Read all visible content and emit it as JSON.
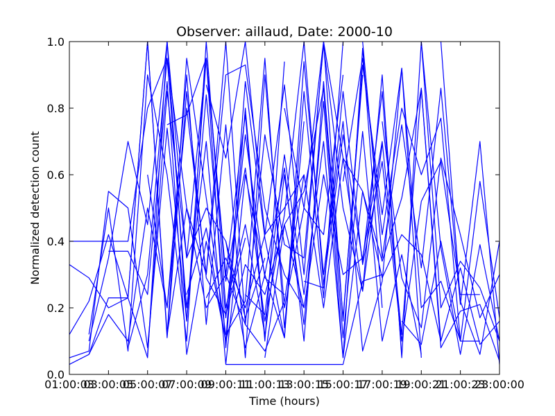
{
  "chart_data": {
    "type": "line",
    "title": "Observer: aillaud, Date: 2000-10",
    "xlabel": "Time (hours)",
    "ylabel": "Normalized detection count",
    "xlim": [
      1,
      23
    ],
    "ylim": [
      0,
      1
    ],
    "x_ticks": [
      1,
      3,
      5,
      7,
      9,
      11,
      13,
      15,
      17,
      19,
      21,
      23
    ],
    "x_tick_labels": [
      "01:00:03",
      "03:00:05",
      "05:00:07",
      "07:00:09",
      "09:00:11",
      "11:00:13",
      "13:00:15",
      "15:00:17",
      "17:00:19",
      "19:00:21",
      "21:00:23",
      "23:00:00"
    ],
    "y_ticks": [
      0,
      0.2,
      0.4,
      0.6,
      0.8,
      1.0
    ],
    "y_tick_labels": [
      "0.0",
      "0.2",
      "0.4",
      "0.6",
      "0.8",
      "1.0"
    ],
    "grid": false,
    "line_color": "#0000ff",
    "series": [
      {
        "x": [
          1,
          3,
          4,
          5,
          6,
          7,
          8,
          9,
          10,
          11,
          12,
          13
        ],
        "y": [
          0.4,
          0.4,
          0.4,
          0.8,
          0.95,
          0.5,
          0.3,
          0.9,
          0.93,
          0.5,
          0.3,
          0.2
        ]
      },
      {
        "x": [
          1,
          2,
          3,
          4,
          5,
          6,
          7,
          8,
          9,
          10,
          11
        ],
        "y": [
          0.33,
          0.29,
          0.2,
          0.23,
          0.05,
          1.0,
          0.35,
          0.5,
          0.4,
          0.17,
          0.35
        ]
      },
      {
        "x": [
          1,
          2,
          3,
          4,
          5,
          6,
          7,
          8,
          9,
          10
        ],
        "y": [
          0.12,
          0.22,
          0.42,
          0.23,
          1.0,
          0.11,
          0.85,
          0.29,
          0.18,
          0.41
        ]
      },
      {
        "x": [
          1,
          2,
          3,
          4,
          5,
          6,
          7,
          8,
          9,
          10,
          11,
          12
        ],
        "y": [
          0.05,
          0.07,
          0.55,
          0.5,
          0.08,
          0.74,
          0.16,
          0.95,
          0.3,
          0.78,
          0.1,
          0.94
        ]
      },
      {
        "x": [
          2,
          3,
          4,
          5,
          6,
          7,
          8,
          9,
          10,
          11
        ],
        "y": [
          0.12,
          0.5,
          0.07,
          0.9,
          0.6,
          0.1,
          1.0,
          0.2,
          0.45,
          0.12
        ]
      },
      {
        "x": [
          2,
          3,
          4,
          5,
          6,
          7,
          8,
          9,
          10,
          11,
          12,
          13
        ],
        "y": [
          0.06,
          0.23,
          0.23,
          1.0,
          0.12,
          0.95,
          0.53,
          0.12,
          0.22,
          0.95,
          0.14,
          0.76
        ]
      },
      {
        "x": [
          1,
          2,
          3,
          4,
          5,
          6,
          7,
          8,
          9,
          10,
          11,
          12,
          13
        ],
        "y": [
          0.03,
          0.06,
          0.18,
          0.1,
          0.5,
          0.2,
          0.8,
          0.3,
          1.0,
          0.15,
          0.07,
          0.22,
          0.6
        ]
      },
      {
        "x": [
          2,
          3,
          4,
          5,
          6,
          7,
          8,
          9,
          10,
          11,
          12
        ],
        "y": [
          0.1,
          0.35,
          0.7,
          0.45,
          1.0,
          0.16,
          0.84,
          0.17,
          0.72,
          0.29,
          0.24
        ]
      },
      {
        "x": [
          3,
          4,
          5,
          6,
          7,
          8,
          9,
          10,
          11,
          12,
          13,
          14,
          15
        ],
        "y": [
          0.37,
          0.37,
          0.24,
          0.88,
          0.06,
          0.4,
          0.1,
          0.88,
          0.41,
          0.11,
          0.85,
          0.23,
          1.0
        ]
      },
      {
        "x": [
          4,
          5,
          6,
          7,
          8,
          9,
          10,
          11,
          12,
          13,
          14,
          15,
          16
        ],
        "y": [
          0.08,
          0.3,
          0.95,
          0.2,
          0.7,
          0.03,
          0.6,
          0.3,
          0.62,
          0.1,
          0.88,
          0.17,
          0.9
        ]
      },
      {
        "x": [
          5,
          6,
          7,
          8,
          9,
          10,
          11,
          12,
          13,
          14,
          15,
          16,
          17
        ],
        "y": [
          0.06,
          0.85,
          0.35,
          0.95,
          0.08,
          0.8,
          0.11,
          0.6,
          0.15,
          0.82,
          0.05,
          0.98,
          0.2
        ]
      },
      {
        "x": [
          5,
          6,
          7,
          8,
          9,
          10,
          11,
          12,
          13,
          14,
          15
        ],
        "y": [
          0.6,
          0.2,
          0.9,
          0.15,
          0.75,
          0.05,
          0.9,
          0.2,
          0.5,
          0.42,
          0.9
        ]
      },
      {
        "x": [
          6,
          7,
          8,
          9,
          10,
          11,
          12,
          13,
          14,
          15,
          16,
          17,
          18
        ],
        "y": [
          0.75,
          0.78,
          0.95,
          0.28,
          0.62,
          0.16,
          0.48,
          1.0,
          0.27,
          0.72,
          0.34,
          0.85,
          0.06
        ]
      },
      {
        "x": [
          6,
          7,
          8,
          9,
          10,
          11,
          12,
          13,
          14,
          15,
          16,
          17
        ],
        "y": [
          0.12,
          0.5,
          0.2,
          0.3,
          0.15,
          0.72,
          0.39,
          0.35,
          0.99,
          0.5,
          0.25,
          0.69
        ]
      },
      {
        "x": [
          7,
          8,
          9,
          10,
          11,
          12,
          13,
          14,
          15,
          16,
          17,
          18,
          19
        ],
        "y": [
          0.24,
          0.44,
          0.1,
          0.33,
          0.24,
          0.45,
          0.55,
          0.86,
          0.11,
          0.73,
          0.1,
          0.36,
          0.06
        ]
      },
      {
        "x": [
          8,
          9,
          10,
          11,
          12,
          13,
          14,
          15,
          16,
          17,
          18,
          19,
          20
        ],
        "y": [
          0.23,
          0.35,
          0.2,
          0.42,
          0.5,
          0.6,
          0.2,
          0.65,
          0.55,
          0.29,
          0.42,
          0.36,
          0.1
        ]
      },
      {
        "x": [
          8,
          9,
          10,
          11,
          12,
          13,
          14,
          15,
          16,
          17,
          18,
          19
        ],
        "y": [
          0.87,
          0.65,
          1.0,
          0.42,
          0.87,
          0.3,
          1.0,
          0.16,
          0.93,
          0.48,
          0.92,
          0.05
        ]
      },
      {
        "x": [
          9,
          10,
          11,
          12,
          13,
          14,
          15,
          16,
          17,
          18,
          19,
          20,
          21
        ],
        "y": [
          0.4,
          0.08,
          0.3,
          0.11,
          0.94,
          0.3,
          0.76,
          0.07,
          0.28,
          0.92,
          0.2,
          0.28,
          0.1
        ]
      },
      {
        "x": [
          10,
          11,
          12,
          13,
          14,
          15,
          16,
          17,
          18,
          19,
          20,
          21,
          22,
          23
        ],
        "y": [
          0.24,
          0.18,
          0.66,
          0.24,
          0.7,
          0.05,
          0.55,
          0.34,
          0.53,
          0.86,
          0.1,
          0.32,
          0.09,
          0.16
        ]
      },
      {
        "x": [
          11,
          12,
          13,
          14,
          15,
          16,
          17,
          18,
          19,
          20,
          21,
          22,
          23
        ],
        "y": [
          0.05,
          0.45,
          0.2,
          0.6,
          0.3,
          0.35,
          0.7,
          0.12,
          0.86,
          0.08,
          0.19,
          0.21,
          0.04
        ]
      },
      {
        "x": [
          12,
          13,
          14,
          15,
          16,
          17,
          18,
          19,
          20,
          21,
          22,
          23
        ],
        "y": [
          0.8,
          0.5,
          1.0,
          0.65,
          0.25,
          0.9,
          0.05,
          1.0,
          0.2,
          0.34,
          0.26,
          0.1
        ]
      },
      {
        "x": [
          13,
          14,
          15,
          16,
          17,
          18,
          19,
          20,
          21,
          22
        ],
        "y": [
          0.28,
          0.26,
          0.85,
          0.33,
          0.64,
          0.1,
          0.52,
          0.64,
          0.24,
          0.24
        ]
      },
      {
        "x": [
          9,
          11,
          13,
          15,
          16,
          17
        ],
        "y": [
          0.03,
          0.03,
          0.03,
          0.03,
          0.28,
          0.3
        ]
      },
      {
        "x": [
          15,
          16,
          17,
          18,
          19,
          20,
          21,
          22
        ],
        "y": [
          0.58,
          0.95,
          0.42,
          0.8,
          0.6,
          0.77,
          0.1,
          0.1
        ]
      },
      {
        "x": [
          16,
          17,
          18,
          19,
          20,
          21,
          22,
          23
        ],
        "y": [
          1.0,
          0.35,
          0.75,
          0.32,
          0.86,
          0.21,
          0.7,
          0.03
        ]
      },
      {
        "x": [
          17,
          18,
          19,
          20,
          21,
          22,
          23
        ],
        "y": [
          0.76,
          0.29,
          0.14,
          0.65,
          0.42,
          0.17,
          0.3
        ]
      },
      {
        "x": [
          18,
          19,
          20,
          21,
          22,
          23
        ],
        "y": [
          0.16,
          0.09,
          0.4,
          0.1,
          0.58,
          0.17
        ]
      },
      {
        "x": [
          19,
          20,
          21,
          22,
          23
        ],
        "y": [
          1.0,
          0.38,
          0.06,
          0.39,
          0.1
        ]
      },
      {
        "x": [
          20,
          21,
          22,
          23
        ],
        "y": [
          1.0,
          0.22,
          0.06,
          0.4
        ]
      }
    ]
  }
}
